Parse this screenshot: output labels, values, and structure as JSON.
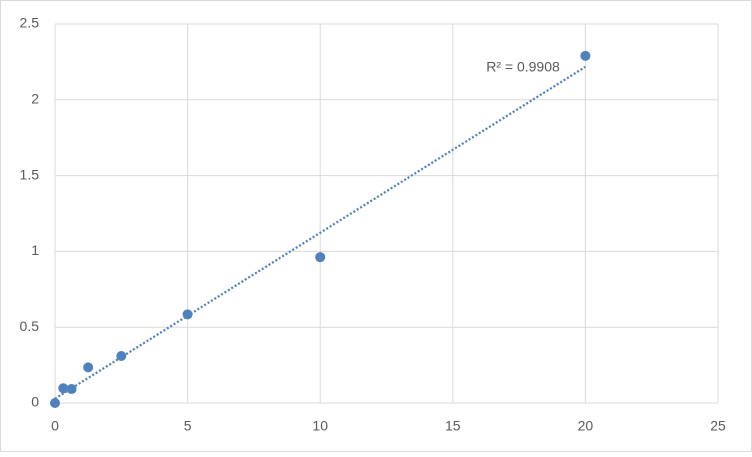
{
  "chart_data": {
    "type": "scatter",
    "x": [
      0,
      0.313,
      0.625,
      1.25,
      2.5,
      5,
      10,
      20
    ],
    "series": [
      {
        "color": "#4f81bd",
        "values": [
          0,
          0.097,
          0.092,
          0.235,
          0.31,
          0.585,
          0.962,
          2.29
        ]
      }
    ],
    "trendline": "linear",
    "annotation": "R² = 0.9908",
    "xlim": [
      0,
      25
    ],
    "xticks": [
      0,
      5,
      10,
      15,
      20,
      25
    ],
    "ylim": [
      0,
      2.5
    ],
    "yticks": [
      0,
      0.5,
      1,
      1.5,
      2,
      2.5
    ],
    "grid": true
  }
}
